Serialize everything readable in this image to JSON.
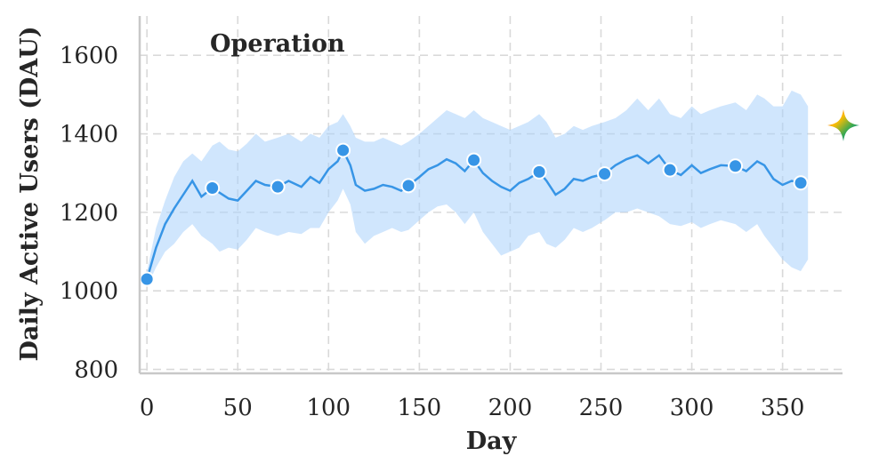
{
  "chart_data": {
    "type": "line",
    "title": "Operation",
    "xlabel": "Day",
    "ylabel": "Daily Active Users (DAU)",
    "xlim": [
      -4,
      383
    ],
    "ylim": [
      790,
      1700
    ],
    "xticks": [
      0,
      50,
      100,
      150,
      200,
      250,
      300,
      350
    ],
    "yticks": [
      800,
      1000,
      1200,
      1400,
      1600
    ],
    "grid": true,
    "line_color": "#3795e6",
    "band_color": "#a9d2fb",
    "series": [
      {
        "x": [
          0,
          5,
          10,
          15,
          20,
          25,
          30,
          36,
          40,
          45,
          50,
          55,
          60,
          65,
          72,
          78,
          85,
          90,
          95,
          100,
          105,
          108,
          112,
          115,
          120,
          125,
          130,
          135,
          140,
          144,
          150,
          155,
          160,
          165,
          170,
          175,
          180,
          185,
          190,
          195,
          200,
          205,
          210,
          216,
          220,
          225,
          230,
          235,
          240,
          245,
          252,
          258,
          264,
          270,
          276,
          282,
          288,
          294,
          300,
          305,
          310,
          316,
          324,
          330,
          336,
          340,
          345,
          350,
          355,
          360,
          364
        ],
        "y": [
          1030,
          1110,
          1170,
          1210,
          1245,
          1280,
          1240,
          1262,
          1250,
          1235,
          1230,
          1255,
          1280,
          1270,
          1265,
          1280,
          1265,
          1290,
          1275,
          1310,
          1330,
          1358,
          1320,
          1270,
          1255,
          1260,
          1270,
          1265,
          1255,
          1268,
          1290,
          1310,
          1320,
          1335,
          1325,
          1305,
          1333,
          1300,
          1280,
          1265,
          1255,
          1275,
          1285,
          1303,
          1280,
          1245,
          1260,
          1285,
          1280,
          1290,
          1298,
          1320,
          1335,
          1345,
          1325,
          1345,
          1308,
          1295,
          1320,
          1300,
          1310,
          1320,
          1318,
          1305,
          1330,
          1320,
          1285,
          1270,
          1280,
          1275,
          1270
        ],
        "lower": [
          1010,
          1060,
          1100,
          1120,
          1150,
          1170,
          1140,
          1120,
          1100,
          1110,
          1105,
          1130,
          1160,
          1150,
          1140,
          1150,
          1145,
          1160,
          1160,
          1200,
          1230,
          1260,
          1220,
          1150,
          1120,
          1140,
          1150,
          1160,
          1150,
          1155,
          1180,
          1200,
          1215,
          1220,
          1200,
          1170,
          1200,
          1150,
          1120,
          1090,
          1100,
          1110,
          1140,
          1150,
          1120,
          1110,
          1130,
          1160,
          1150,
          1160,
          1180,
          1200,
          1200,
          1210,
          1200,
          1190,
          1170,
          1165,
          1175,
          1160,
          1170,
          1180,
          1170,
          1150,
          1170,
          1140,
          1110,
          1080,
          1060,
          1050,
          1080
        ],
        "upper": [
          1050,
          1160,
          1230,
          1290,
          1330,
          1350,
          1330,
          1370,
          1380,
          1360,
          1355,
          1375,
          1400,
          1380,
          1390,
          1400,
          1380,
          1400,
          1390,
          1420,
          1430,
          1450,
          1420,
          1390,
          1380,
          1380,
          1390,
          1380,
          1370,
          1380,
          1400,
          1420,
          1440,
          1460,
          1450,
          1440,
          1460,
          1440,
          1430,
          1420,
          1410,
          1420,
          1430,
          1450,
          1430,
          1390,
          1400,
          1420,
          1410,
          1420,
          1430,
          1440,
          1460,
          1490,
          1460,
          1490,
          1450,
          1440,
          1470,
          1450,
          1460,
          1470,
          1480,
          1460,
          1500,
          1490,
          1470,
          1470,
          1510,
          1500,
          1470
        ]
      }
    ],
    "markers": {
      "x": [
        0,
        36,
        72,
        108,
        144,
        180,
        216,
        252,
        288,
        324,
        360
      ],
      "y": [
        1030,
        1262,
        1265,
        1358,
        1268,
        1333,
        1303,
        1298,
        1308,
        1318,
        1275
      ]
    }
  },
  "decoration": {
    "sparkle": "sparkle-icon"
  }
}
